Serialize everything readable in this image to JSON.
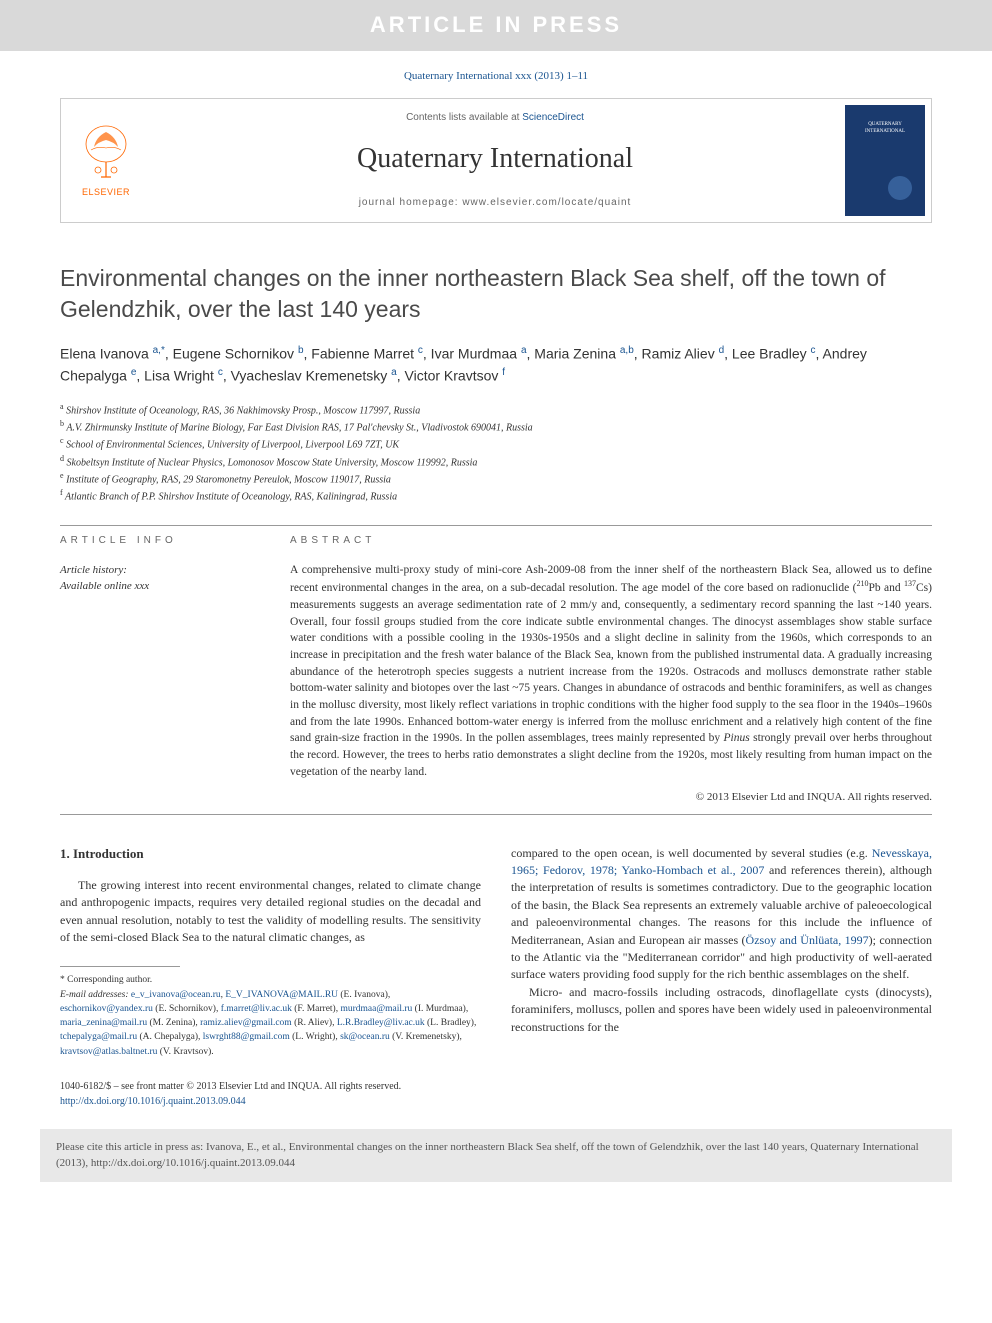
{
  "banner": "ARTICLE IN PRESS",
  "citation": "Quaternary International xxx (2013) 1–11",
  "header": {
    "contents_prefix": "Contents lists available at ",
    "contents_link": "ScienceDirect",
    "journal": "Quaternary International",
    "homepage_prefix": "journal homepage: ",
    "homepage_url": "www.elsevier.com/locate/quaint",
    "publisher": "ELSEVIER"
  },
  "title": "Environmental changes on the inner northeastern Black Sea shelf, off the town of Gelendzhik, over the last 140 years",
  "authors_html": "Elena Ivanova <sup>a,*</sup>, Eugene Schornikov <sup>b</sup>, Fabienne Marret <sup>c</sup>, Ivar Murdmaa <sup>a</sup>, Maria Zenina <sup>a,b</sup>, Ramiz Aliev <sup>d</sup>, Lee Bradley <sup>c</sup>, Andrey Chepalyga <sup>e</sup>, Lisa Wright <sup>c</sup>, Vyacheslav Kremenetsky <sup>a</sup>, Victor Kravtsov <sup>f</sup>",
  "affiliations": [
    {
      "sup": "a",
      "text": "Shirshov Institute of Oceanology, RAS, 36 Nakhimovsky Prosp., Moscow 117997, Russia"
    },
    {
      "sup": "b",
      "text": "A.V. Zhirmunsky Institute of Marine Biology, Far East Division RAS, 17 Pal'chevsky St., Vladivostok 690041, Russia"
    },
    {
      "sup": "c",
      "text": "School of Environmental Sciences, University of Liverpool, Liverpool L69 7ZT, UK"
    },
    {
      "sup": "d",
      "text": "Skobeltsyn Institute of Nuclear Physics, Lomonosov Moscow State University, Moscow 119992, Russia"
    },
    {
      "sup": "e",
      "text": "Institute of Geography, RAS, 29 Staromonetny Pereulok, Moscow 119017, Russia"
    },
    {
      "sup": "f",
      "text": "Atlantic Branch of P.P. Shirshov Institute of Oceanology, RAS, Kaliningrad, Russia"
    }
  ],
  "info": {
    "section_label": "ARTICLE INFO",
    "history_label": "Article history:",
    "history_text": "Available online xxx"
  },
  "abstract": {
    "label": "ABSTRACT",
    "text_html": "A comprehensive multi-proxy study of mini-core Ash-2009-08 from the inner shelf of the northeastern Black Sea, allowed us to define recent environmental changes in the area, on a sub-decadal resolution. The age model of the core based on radionuclide (<sup>210</sup>Pb and <sup>137</sup>Cs) measurements suggests an average sedimentation rate of 2 mm/y and, consequently, a sedimentary record spanning the last ~140 years. Overall, four fossil groups studied from the core indicate subtle environmental changes. The dinocyst assemblages show stable surface water conditions with a possible cooling in the 1930s-1950s and a slight decline in salinity from the 1960s, which corresponds to an increase in precipitation and the fresh water balance of the Black Sea, known from the published instrumental data. A gradually increasing abundance of the heterotroph species suggests a nutrient increase from the 1920s. Ostracods and molluscs demonstrate rather stable bottom-water salinity and biotopes over the last ~75 years. Changes in abundance of ostracods and benthic foraminifers, as well as changes in the mollusc diversity, most likely reflect variations in trophic conditions with the higher food supply to the sea floor in the 1940s–1960s and from the late 1990s. Enhanced bottom-water energy is inferred from the mollusc enrichment and a relatively high content of the fine sand grain-size fraction in the 1990s. In the pollen assemblages, trees mainly represented by <i>Pinus</i> strongly prevail over herbs throughout the record. However, the trees to herbs ratio demonstrates a slight decline from the 1920s, most likely resulting from human impact on the vegetation of the nearby land.",
    "copyright": "© 2013 Elsevier Ltd and INQUA. All rights reserved."
  },
  "body": {
    "section1_heading": "1. Introduction",
    "col1_p1": "The growing interest into recent environmental changes, related to climate change and anthropogenic impacts, requires very detailed regional studies on the decadal and even annual resolution, notably to test the validity of modelling results. The sensitivity of the semi-closed Black Sea to the natural climatic changes, as",
    "col2_p1_html": "compared to the open ocean, is well documented by several studies (e.g. <span class='link'>Nevesskaya, 1965; Fedorov, 1978; Yanko-Hombach et al., 2007</span> and references therein), although the interpretation of results is sometimes contradictory. Due to the geographic location of the basin, the Black Sea represents an extremely valuable archive of paleoecological and paleoenvironmental changes. The reasons for this include the influence of Mediterranean, Asian and European air masses (<span class='link'>Özsoy and Ünlüata, 1997</span>); connection to the Atlantic via the \"Mediterranean corridor\" and high productivity of well-aerated surface waters providing food supply for the rich benthic assemblages on the shelf.",
    "col2_p2": "Micro- and macro-fossils including ostracods, dinoflagellate cysts (dinocysts), foraminifers, molluscs, pollen and spores have been widely used in paleoenvironmental reconstructions for the"
  },
  "footnotes": {
    "corresponding": "* Corresponding author.",
    "emails_label": "E-mail addresses:",
    "emails_html": "<span class='link'>e_v_ivanova@ocean.ru</span>, <span class='link'>E_V_IVANOVA@MAIL.RU</span> (E. Ivanova), <span class='link'>eschornikov@yandex.ru</span> (E. Schornikov), <span class='link'>f.marret@liv.ac.uk</span> (F. Marret), <span class='link'>murdmaa@mail.ru</span> (I. Murdmaa), <span class='link'>maria_zenina@mail.ru</span> (M. Zenina), <span class='link'>ramiz.aliev@gmail.com</span> (R. Aliev), <span class='link'>L.R.Bradley@liv.ac.uk</span> (L. Bradley), <span class='link'>tchepalyga@mail.ru</span> (A. Chepalyga), <span class='link'>lswrght88@gmail.com</span> (L. Wright), <span class='link'>sk@ocean.ru</span> (V. Kremenetsky), <span class='link'>kravtsov@atlas.baltnet.ru</span> (V. Kravtsov)."
  },
  "bottom": {
    "issn": "1040-6182/$ – see front matter © 2013 Elsevier Ltd and INQUA. All rights reserved.",
    "doi": "http://dx.doi.org/10.1016/j.quaint.2013.09.044"
  },
  "citebox": "Please cite this article in press as: Ivanova, E., et al., Environmental changes on the inner northeastern Black Sea shelf, off the town of Gelendzhik, over the last 140 years, Quaternary International (2013), http://dx.doi.org/10.1016/j.quaint.2013.09.044",
  "colors": {
    "banner_bg": "#d9d9d9",
    "banner_text": "#ffffff",
    "link": "#1a5490",
    "elsevier_orange": "#ff6600",
    "cover_blue": "#1a3a6e",
    "citebox_bg": "#e8e8e8",
    "text": "#333333"
  }
}
